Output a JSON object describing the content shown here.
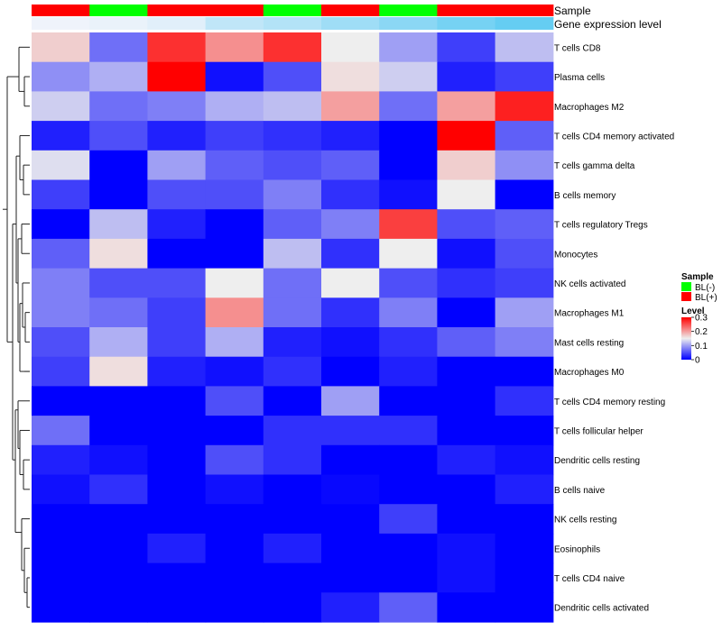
{
  "chart_data": {
    "type": "heatmap",
    "title": "",
    "annotation_labels": {
      "sample": "Sample",
      "gene_expression": "Gene expression level"
    },
    "sample_groups": [
      "BL(+)",
      "BL(-)",
      "BL(+)",
      "BL(+)",
      "BL(-)",
      "BL(+)",
      "BL(-)",
      "BL(+)",
      "BL(+)"
    ],
    "gene_expression_levels": [
      0.02,
      0.05,
      0.1,
      0.3,
      0.38,
      0.5,
      0.62,
      0.75,
      0.85
    ],
    "rows": [
      "T cells CD8",
      "Plasma cells",
      "Macrophages M2",
      "T cells CD4 memory activated",
      "T cells gamma delta",
      "B cells memory",
      "T cells regulatory  Tregs",
      "Monocytes",
      "NK cells activated",
      "Macrophages M1",
      "Mast cells resting",
      "Macrophages M0",
      "T cells CD4 memory resting",
      "T cells follicular helper",
      "Dendritic cells resting",
      "B cells naive",
      "NK cells resting",
      "Eosinophils",
      "T cells CD4 naive",
      "Dendritic cells activated"
    ],
    "values": [
      [
        0.17,
        0.07,
        0.27,
        0.21,
        0.27,
        0.15,
        0.1,
        0.04,
        0.12
      ],
      [
        0.09,
        0.11,
        0.3,
        0.01,
        0.05,
        0.16,
        0.13,
        0.02,
        0.04
      ],
      [
        0.13,
        0.07,
        0.08,
        0.11,
        0.12,
        0.2,
        0.07,
        0.2,
        0.28
      ],
      [
        0.02,
        0.05,
        0.02,
        0.04,
        0.03,
        0.02,
        0.0,
        0.3,
        0.06
      ],
      [
        0.14,
        0.0,
        0.1,
        0.06,
        0.05,
        0.06,
        0.0,
        0.17,
        0.09
      ],
      [
        0.04,
        0.0,
        0.05,
        0.05,
        0.08,
        0.03,
        0.01,
        0.15,
        0.0
      ],
      [
        0.0,
        0.12,
        0.02,
        0.0,
        0.06,
        0.08,
        0.26,
        0.05,
        0.06
      ],
      [
        0.06,
        0.16,
        0.0,
        0.0,
        0.12,
        0.03,
        0.15,
        0.01,
        0.05
      ],
      [
        0.08,
        0.05,
        0.05,
        0.15,
        0.07,
        0.15,
        0.05,
        0.03,
        0.04
      ],
      [
        0.08,
        0.07,
        0.04,
        0.21,
        0.07,
        0.03,
        0.08,
        0.0,
        0.1
      ],
      [
        0.05,
        0.11,
        0.04,
        0.11,
        0.02,
        0.01,
        0.03,
        0.06,
        0.08
      ],
      [
        0.04,
        0.16,
        0.02,
        0.01,
        0.03,
        0.0,
        0.02,
        0.0,
        0.0
      ],
      [
        0.0,
        0.0,
        0.0,
        0.05,
        0.0,
        0.1,
        0.0,
        0.0,
        0.03
      ],
      [
        0.07,
        0.0,
        0.0,
        0.0,
        0.03,
        0.03,
        0.03,
        0.0,
        0.0
      ],
      [
        0.02,
        0.01,
        0.0,
        0.05,
        0.03,
        0.0,
        0.0,
        0.02,
        0.01
      ],
      [
        0.01,
        0.03,
        0.0,
        0.01,
        0.0,
        0.005,
        0.0,
        0.0,
        0.02
      ],
      [
        0.0,
        0.0,
        0.0,
        0.0,
        0.0,
        0.0,
        0.04,
        0.0,
        0.0
      ],
      [
        0.0,
        0.0,
        0.02,
        0.0,
        0.02,
        0.0,
        0.0,
        0.01,
        0.0
      ],
      [
        0.0,
        0.0,
        0.0,
        0.0,
        0.0,
        0.0,
        0.0,
        0.01,
        0.0
      ],
      [
        0.0,
        0.0,
        0.0,
        0.0,
        0.0,
        0.02,
        0.06,
        0.0,
        0.0
      ]
    ],
    "color_scale": {
      "low": "#0000ff",
      "mid": "#eeeeee",
      "high": "#ff0000",
      "min": 0,
      "mid_value": 0.15,
      "max": 0.3
    },
    "group_colors": {
      "BL(-)": "#00ff00",
      "BL(+)": "#ff0000"
    },
    "gene_expression_colors": {
      "low": "#f2f4fb",
      "high": "#4cc6f0"
    },
    "legend": {
      "sample_title": "Sample",
      "sample_entries": [
        "BL(-)",
        "BL(+)"
      ],
      "level_title": "Level",
      "level_ticks": [
        "0.3",
        "0.2",
        "0.1",
        "0"
      ],
      "level_tick_values": [
        0.3,
        0.2,
        0.1,
        0
      ],
      "position": "right"
    }
  }
}
